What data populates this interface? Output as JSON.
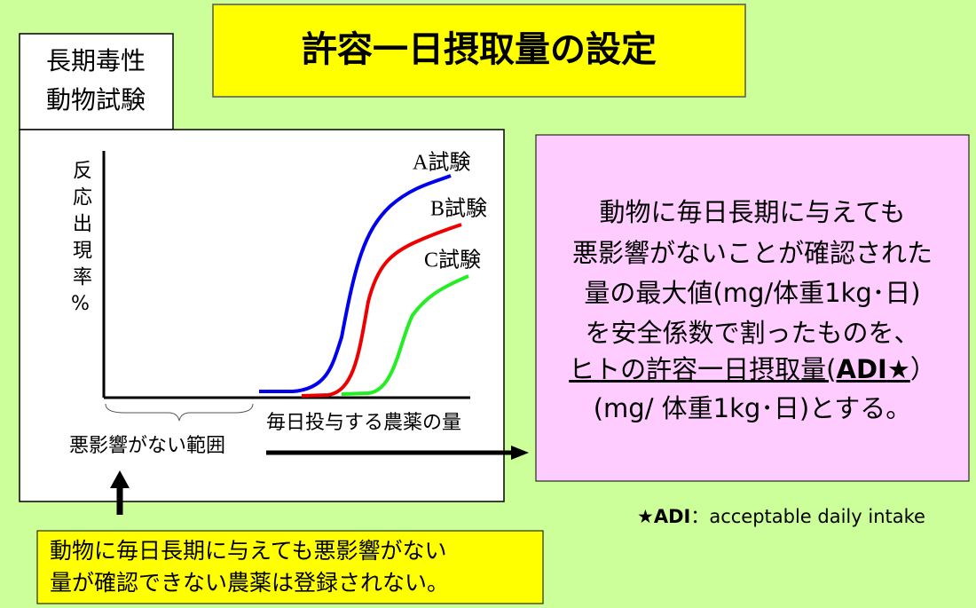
{
  "title": "許容一日摂取量の設定",
  "test_label": {
    "lines": [
      "長期毒性",
      "動物試験"
    ]
  },
  "diagram": {
    "y_axis_label": "反応出現率%",
    "x_axis_label": "毎日投与する農薬の量",
    "curves": [
      {
        "label": "A試験"
      },
      {
        "label": "B試験"
      },
      {
        "label": "C試験"
      }
    ],
    "range_label": "悪影響がない範囲"
  },
  "explanation": {
    "lines": [
      "動物に毎日長期に与えても",
      "悪影響がないことが確認された",
      "量の最大値(mg/体重1kg･日)",
      "を安全係数で割ったものを、"
    ],
    "adi_line": {
      "underlined_start": "ヒトの許容一日摂取量(",
      "bold": "ADI",
      "underlined_end": "★",
      "end": "）"
    },
    "last_line": "(mg/ 体重1kg･日)とする。"
  },
  "footnote": {
    "bold": "★ADI",
    "text": "：acceptable daily intake"
  },
  "note": {
    "lines": [
      "動物に毎日長期に与えても悪影響がない",
      "量が確認できない農薬は登録されない。"
    ]
  }
}
